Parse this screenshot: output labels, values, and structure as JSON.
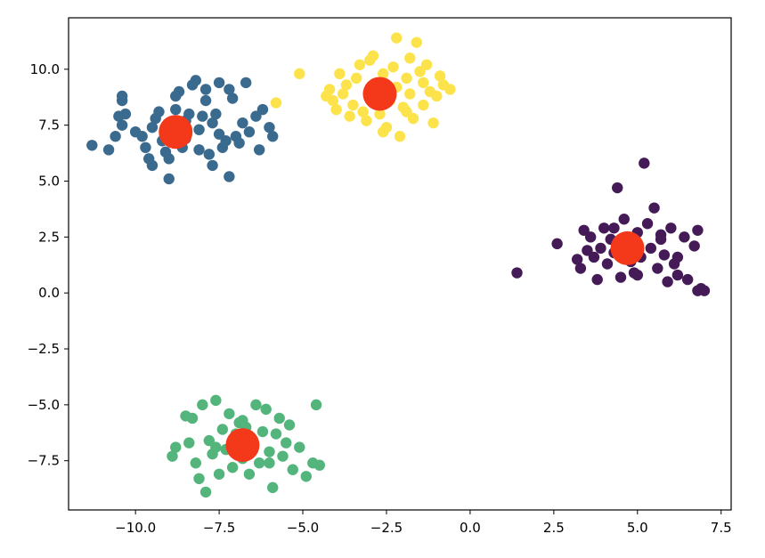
{
  "chart_data": {
    "type": "scatter",
    "title": "",
    "xlabel": "",
    "ylabel": "",
    "xlim": [
      -12.0,
      7.8
    ],
    "ylim": [
      -9.7,
      12.3
    ],
    "grid": false,
    "legend": "none",
    "x_ticks": [
      {
        "value": -10.0,
        "label": "−10.0"
      },
      {
        "value": -7.5,
        "label": "−7.5"
      },
      {
        "value": -5.0,
        "label": "−5.0"
      },
      {
        "value": -2.5,
        "label": "−2.5"
      },
      {
        "value": 0.0,
        "label": "0.0"
      },
      {
        "value": 2.5,
        "label": "2.5"
      },
      {
        "value": 5.0,
        "label": "5.0"
      },
      {
        "value": 7.5,
        "label": "7.5"
      }
    ],
    "y_ticks": [
      {
        "value": 10.0,
        "label": "10.0"
      },
      {
        "value": 7.5,
        "label": "7.5"
      },
      {
        "value": 5.0,
        "label": "5.0"
      },
      {
        "value": 2.5,
        "label": "2.5"
      },
      {
        "value": 0.0,
        "label": "0.0"
      },
      {
        "value": -2.5,
        "label": "−2.5"
      },
      {
        "value": -5.0,
        "label": "−5.0"
      },
      {
        "value": -7.5,
        "label": "−7.5"
      }
    ],
    "series": [
      {
        "color": "#3b6a8f",
        "points": [
          [
            -11.3,
            6.6
          ],
          [
            -10.8,
            6.4
          ],
          [
            -10.6,
            7.0
          ],
          [
            -10.4,
            7.5
          ],
          [
            -10.5,
            7.9
          ],
          [
            -10.3,
            8.0
          ],
          [
            -10.4,
            8.6
          ],
          [
            -10.4,
            8.8
          ],
          [
            -10.0,
            7.2
          ],
          [
            -9.8,
            7.0
          ],
          [
            -9.7,
            6.5
          ],
          [
            -9.6,
            6.0
          ],
          [
            -9.5,
            5.7
          ],
          [
            -9.5,
            7.4
          ],
          [
            -9.4,
            7.8
          ],
          [
            -9.3,
            8.1
          ],
          [
            -9.2,
            6.8
          ],
          [
            -9.1,
            6.3
          ],
          [
            -9.0,
            6.0
          ],
          [
            -9.0,
            5.1
          ],
          [
            -8.9,
            7.6
          ],
          [
            -8.8,
            8.2
          ],
          [
            -8.8,
            8.8
          ],
          [
            -8.7,
            9.0
          ],
          [
            -8.6,
            6.5
          ],
          [
            -8.5,
            6.9
          ],
          [
            -8.5,
            7.7
          ],
          [
            -8.4,
            8.0
          ],
          [
            -8.3,
            9.3
          ],
          [
            -8.2,
            9.5
          ],
          [
            -8.1,
            6.4
          ],
          [
            -8.1,
            7.3
          ],
          [
            -8.0,
            7.9
          ],
          [
            -7.9,
            8.6
          ],
          [
            -7.9,
            9.1
          ],
          [
            -7.8,
            6.2
          ],
          [
            -7.7,
            5.7
          ],
          [
            -7.7,
            7.6
          ],
          [
            -7.6,
            8.0
          ],
          [
            -7.5,
            9.4
          ],
          [
            -7.5,
            7.1
          ],
          [
            -7.4,
            6.5
          ],
          [
            -7.3,
            6.8
          ],
          [
            -7.2,
            5.2
          ],
          [
            -7.2,
            9.1
          ],
          [
            -7.1,
            8.7
          ],
          [
            -7.0,
            7.0
          ],
          [
            -6.9,
            6.7
          ],
          [
            -6.8,
            7.6
          ],
          [
            -6.7,
            9.4
          ],
          [
            -6.6,
            7.2
          ],
          [
            -6.4,
            7.9
          ],
          [
            -6.3,
            6.4
          ],
          [
            -6.2,
            8.2
          ],
          [
            -6.0,
            7.4
          ],
          [
            -5.9,
            7.0
          ]
        ]
      },
      {
        "color": "#fde34b",
        "points": [
          [
            -5.8,
            8.5
          ],
          [
            -5.1,
            9.8
          ],
          [
            -4.2,
            9.1
          ],
          [
            -4.1,
            8.6
          ],
          [
            -4.0,
            8.2
          ],
          [
            -3.8,
            8.9
          ],
          [
            -3.7,
            9.3
          ],
          [
            -3.6,
            7.9
          ],
          [
            -3.5,
            8.4
          ],
          [
            -3.4,
            9.6
          ],
          [
            -3.3,
            10.2
          ],
          [
            -3.2,
            8.1
          ],
          [
            -3.1,
            7.7
          ],
          [
            -3.0,
            9.0
          ],
          [
            -2.9,
            8.7
          ],
          [
            -2.9,
            10.6
          ],
          [
            -2.8,
            9.4
          ],
          [
            -2.7,
            8.0
          ],
          [
            -2.6,
            9.8
          ],
          [
            -2.5,
            7.4
          ],
          [
            -2.4,
            8.6
          ],
          [
            -2.3,
            10.1
          ],
          [
            -2.2,
            11.4
          ],
          [
            -2.2,
            9.2
          ],
          [
            -2.1,
            7.0
          ],
          [
            -2.0,
            8.3
          ],
          [
            -1.9,
            9.6
          ],
          [
            -1.8,
            10.5
          ],
          [
            -1.8,
            8.9
          ],
          [
            -1.7,
            7.8
          ],
          [
            -1.6,
            11.2
          ],
          [
            -1.5,
            9.9
          ],
          [
            -1.4,
            8.4
          ],
          [
            -1.3,
            10.2
          ],
          [
            -1.2,
            9.0
          ],
          [
            -1.1,
            7.6
          ],
          [
            -1.0,
            8.8
          ],
          [
            -0.9,
            9.7
          ],
          [
            -0.8,
            9.3
          ],
          [
            -0.6,
            9.1
          ],
          [
            -3.9,
            9.8
          ],
          [
            -4.3,
            8.8
          ],
          [
            -3.0,
            10.4
          ],
          [
            -2.6,
            7.2
          ],
          [
            -1.9,
            8.1
          ],
          [
            -1.4,
            9.4
          ]
        ]
      },
      {
        "color": "#441b57",
        "points": [
          [
            1.4,
            0.9
          ],
          [
            2.6,
            2.2
          ],
          [
            3.2,
            1.5
          ],
          [
            3.3,
            1.1
          ],
          [
            3.4,
            2.8
          ],
          [
            3.5,
            1.9
          ],
          [
            3.6,
            2.5
          ],
          [
            3.7,
            1.6
          ],
          [
            3.8,
            0.6
          ],
          [
            3.9,
            2.0
          ],
          [
            4.0,
            2.9
          ],
          [
            4.1,
            1.3
          ],
          [
            4.2,
            2.4
          ],
          [
            4.3,
            1.8
          ],
          [
            4.4,
            4.7
          ],
          [
            4.5,
            0.7
          ],
          [
            4.6,
            3.3
          ],
          [
            4.7,
            2.2
          ],
          [
            4.8,
            1.4
          ],
          [
            4.9,
            0.9
          ],
          [
            5.0,
            2.7
          ],
          [
            5.1,
            1.6
          ],
          [
            5.2,
            5.8
          ],
          [
            5.3,
            3.1
          ],
          [
            5.4,
            2.0
          ],
          [
            5.5,
            3.8
          ],
          [
            5.6,
            1.1
          ],
          [
            5.7,
            2.4
          ],
          [
            5.8,
            1.7
          ],
          [
            5.9,
            0.5
          ],
          [
            6.0,
            2.9
          ],
          [
            6.1,
            1.3
          ],
          [
            6.2,
            0.8
          ],
          [
            6.4,
            2.5
          ],
          [
            6.5,
            0.6
          ],
          [
            6.7,
            2.1
          ],
          [
            6.8,
            2.8
          ],
          [
            6.8,
            0.1
          ],
          [
            6.9,
            0.2
          ],
          [
            7.0,
            0.1
          ],
          [
            4.3,
            2.9
          ],
          [
            5.0,
            0.8
          ],
          [
            5.7,
            2.6
          ],
          [
            6.2,
            1.6
          ]
        ]
      },
      {
        "color": "#54b57c",
        "points": [
          [
            -8.9,
            -7.3
          ],
          [
            -8.8,
            -6.9
          ],
          [
            -8.5,
            -5.5
          ],
          [
            -8.4,
            -6.7
          ],
          [
            -8.3,
            -5.6
          ],
          [
            -8.2,
            -7.6
          ],
          [
            -8.1,
            -8.3
          ],
          [
            -8.0,
            -5.0
          ],
          [
            -7.9,
            -8.9
          ],
          [
            -7.8,
            -6.6
          ],
          [
            -7.7,
            -7.2
          ],
          [
            -7.6,
            -4.8
          ],
          [
            -7.5,
            -8.1
          ],
          [
            -7.4,
            -6.1
          ],
          [
            -7.3,
            -7.0
          ],
          [
            -7.2,
            -5.4
          ],
          [
            -7.1,
            -7.8
          ],
          [
            -7.0,
            -6.3
          ],
          [
            -6.9,
            -5.8
          ],
          [
            -6.8,
            -7.4
          ],
          [
            -6.7,
            -6.0
          ],
          [
            -6.6,
            -8.1
          ],
          [
            -6.5,
            -6.6
          ],
          [
            -6.4,
            -5.0
          ],
          [
            -6.3,
            -7.6
          ],
          [
            -6.2,
            -6.2
          ],
          [
            -6.1,
            -5.2
          ],
          [
            -6.0,
            -7.1
          ],
          [
            -5.9,
            -8.7
          ],
          [
            -5.8,
            -6.3
          ],
          [
            -5.7,
            -5.6
          ],
          [
            -5.6,
            -7.3
          ],
          [
            -5.5,
            -6.7
          ],
          [
            -5.4,
            -5.9
          ],
          [
            -5.3,
            -7.9
          ],
          [
            -5.1,
            -6.9
          ],
          [
            -4.9,
            -8.2
          ],
          [
            -4.7,
            -7.6
          ],
          [
            -4.6,
            -5.0
          ],
          [
            -4.5,
            -7.7
          ],
          [
            -7.6,
            -6.9
          ],
          [
            -6.8,
            -5.7
          ],
          [
            -6.0,
            -7.6
          ]
        ]
      }
    ],
    "centers": {
      "color": "#f4391b",
      "points": [
        [
          -8.8,
          7.2
        ],
        [
          -2.7,
          8.9
        ],
        [
          4.7,
          2.0
        ],
        [
          -6.8,
          -6.8
        ]
      ]
    }
  }
}
